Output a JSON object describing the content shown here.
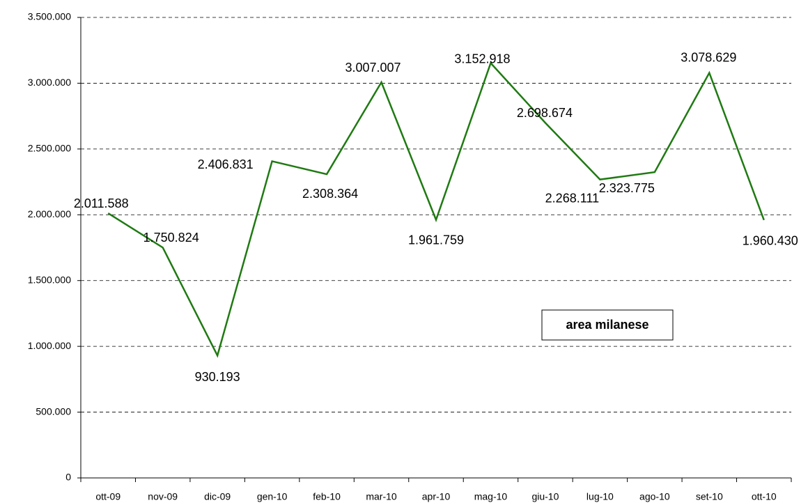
{
  "chart_data": {
    "type": "line",
    "categories": [
      "ott-09",
      "nov-09",
      "dic-09",
      "gen-10",
      "feb-10",
      "mar-10",
      "apr-10",
      "mag-10",
      "giu-10",
      "lug-10",
      "ago-10",
      "set-10",
      "ott-10"
    ],
    "series": [
      {
        "name": "area milanese",
        "color": "#1f7a12",
        "values": [
          2011588,
          1750824,
          930193,
          2406831,
          2308364,
          3007007,
          1961759,
          3152918,
          2698674,
          2268111,
          2323775,
          3078629,
          1960430
        ],
        "value_labels": [
          "2.011.588",
          "1.750.824",
          "930.193",
          "2.406.831",
          "2.308.364",
          "3.007.007",
          "1.961.759",
          "3.152.918",
          "2.698.674",
          "2.268.111",
          "2.323.775",
          "3.078.629",
          "1.960.430"
        ]
      }
    ],
    "ylim": [
      0,
      3500000
    ],
    "yticks": [
      0,
      {
        "value": 500000,
        "label": "500.000"
      },
      {
        "value": 1000000,
        "label": "1.000.000"
      },
      {
        "value": 1500000,
        "label": "1.500.000"
      },
      {
        "value": 2000000,
        "label": "2.000.000"
      },
      {
        "value": 2500000,
        "label": "2.500.000"
      },
      {
        "value": 3000000,
        "label": "3.000.000"
      },
      {
        "value": 3500000,
        "label": "3.500.000"
      }
    ],
    "grid": true,
    "annotation": "area milanese"
  }
}
